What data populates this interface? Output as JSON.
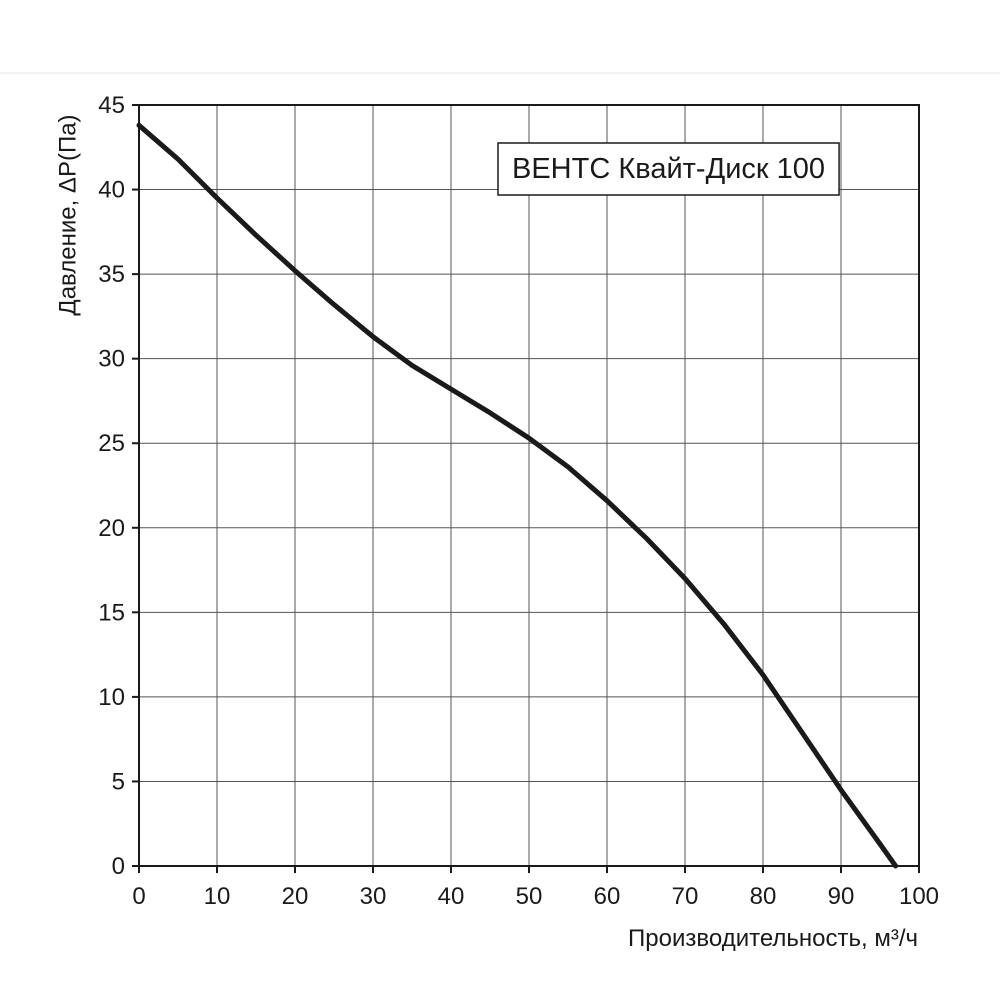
{
  "chart_data": {
    "type": "line",
    "title": "",
    "xlabel": "Производительность, м³/ч",
    "ylabel": "Давление, ΔP(Па)",
    "xlim": [
      0,
      100
    ],
    "ylim": [
      0,
      45
    ],
    "x_ticks": [
      0,
      10,
      20,
      30,
      40,
      50,
      60,
      70,
      80,
      90,
      100
    ],
    "y_ticks": [
      0,
      5,
      10,
      15,
      20,
      25,
      30,
      35,
      40,
      45
    ],
    "grid": true,
    "legend_position": "top-right",
    "series": [
      {
        "name": "ВЕНТС Квайт-Диск 100",
        "color": "#1a1a1a",
        "x": [
          0,
          5,
          10,
          15,
          20,
          25,
          30,
          35,
          40,
          45,
          50,
          55,
          60,
          65,
          70,
          75,
          80,
          85,
          90,
          95,
          97
        ],
        "y": [
          43.8,
          41.8,
          39.5,
          37.3,
          35.2,
          33.2,
          31.3,
          29.6,
          28.2,
          26.8,
          25.3,
          23.6,
          21.6,
          19.4,
          17.0,
          14.3,
          11.3,
          7.9,
          4.5,
          1.3,
          0
        ]
      }
    ]
  }
}
